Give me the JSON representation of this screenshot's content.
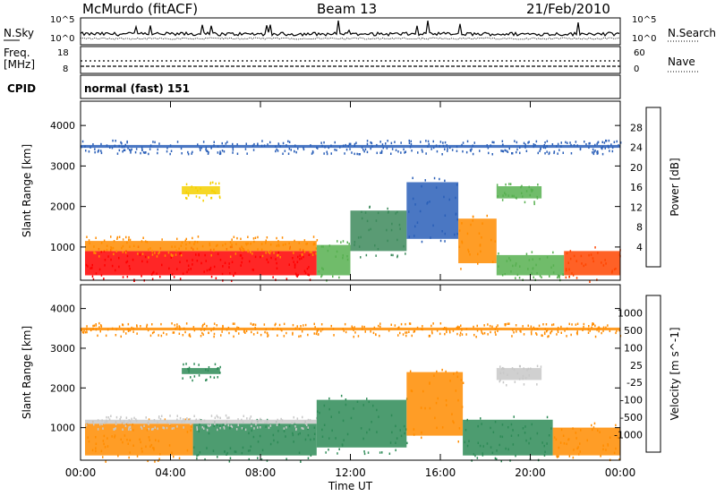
{
  "header": {
    "station": "McMurdo (fitACF)",
    "beam": "Beam 13",
    "date": "21/Feb/2010"
  },
  "noise_panel": {
    "left_label": "N.Sky",
    "right_label": "N.Search",
    "left_ticks": [
      "10^5",
      "10^0"
    ],
    "right_ticks": [
      "10^5",
      "10^0"
    ]
  },
  "freq_panel": {
    "left_label_top": "Freq.",
    "left_label_bottom": "[MHz]",
    "right_label": "Nave",
    "left_ticks": [
      "18",
      "8"
    ],
    "right_ticks": [
      "60",
      "0"
    ]
  },
  "cpid": {
    "label": "CPID",
    "value": "normal (fast) 151"
  },
  "chart_data": [
    {
      "type": "heatmap",
      "name": "power",
      "ylabel": "Slant Range [km]",
      "xlabel": "",
      "x_ticks": [
        "00:00",
        "04:00",
        "08:00",
        "12:00",
        "16:00",
        "20:00",
        "00:00"
      ],
      "y_ticks": [
        "1000",
        "2000",
        "3000",
        "4000"
      ],
      "xlim_hours": [
        0,
        24
      ],
      "ylim_km": [
        180,
        4600
      ],
      "colorbar": {
        "label": "Power [dB]",
        "tick_labels": [
          "4",
          "8",
          "12",
          "16",
          "20",
          "24",
          "28"
        ],
        "colors": [
          "#0000ff",
          "#2a5fb8",
          "#3d8a5c",
          "#57b050",
          "#f5d000",
          "#ff8c00",
          "#ff4500",
          "#ff0000"
        ]
      },
      "bands": [
        {
          "t0": 0.2,
          "t1": 10.5,
          "r0": 300,
          "r1": 900,
          "color": "#ff0000"
        },
        {
          "t0": 0.2,
          "t1": 10.5,
          "r0": 900,
          "r1": 1150,
          "color": "#ff8c00"
        },
        {
          "t0": 10.5,
          "t1": 12.0,
          "r0": 300,
          "r1": 1050,
          "color": "#57b050"
        },
        {
          "t0": 12.0,
          "t1": 14.5,
          "r0": 900,
          "r1": 1900,
          "color": "#3d8a5c"
        },
        {
          "t0": 14.5,
          "t1": 16.8,
          "r0": 1200,
          "r1": 2600,
          "color": "#2a5fb8"
        },
        {
          "t0": 16.8,
          "t1": 18.5,
          "r0": 600,
          "r1": 1700,
          "color": "#ff8c00"
        },
        {
          "t0": 18.5,
          "t1": 21.5,
          "r0": 300,
          "r1": 800,
          "color": "#57b050"
        },
        {
          "t0": 21.5,
          "t1": 24.0,
          "r0": 300,
          "r1": 900,
          "color": "#ff4500"
        },
        {
          "t0": 18.5,
          "t1": 20.5,
          "r0": 2200,
          "r1": 2500,
          "color": "#57b050"
        },
        {
          "t0": 4.5,
          "t1": 6.2,
          "r0": 2300,
          "r1": 2500,
          "color": "#f5d000"
        },
        {
          "t0": 0.0,
          "t1": 24.0,
          "r0": 3450,
          "r1": 3520,
          "color": "#2a5fb8"
        }
      ]
    },
    {
      "type": "heatmap",
      "name": "velocity",
      "ylabel": "Slant Range [km]",
      "xlabel": "Time UT",
      "x_ticks": [
        "00:00",
        "04:00",
        "08:00",
        "12:00",
        "16:00",
        "20:00",
        "00:00"
      ],
      "y_ticks": [
        "1000",
        "2000",
        "3000",
        "4000"
      ],
      "xlim_hours": [
        0,
        24
      ],
      "ylim_km": [
        180,
        4600
      ],
      "colorbar": {
        "label": "Velocity [m s^-1]",
        "tick_labels": [
          "1000",
          "500",
          "100",
          "25",
          "-25",
          "-100",
          "-500",
          "-1000"
        ],
        "colors": [
          "#1e3cc8",
          "#3a7a8c",
          "#2e8b57",
          "#66c844",
          "#c8c8c8",
          "#ffd27a",
          "#ff8c00",
          "#ff4a1a",
          "#ff0000"
        ]
      },
      "bands": [
        {
          "t0": 0.2,
          "t1": 5.0,
          "r0": 300,
          "r1": 1100,
          "color": "#ff8c00"
        },
        {
          "t0": 5.0,
          "t1": 10.5,
          "r0": 300,
          "r1": 1100,
          "color": "#2e8b57"
        },
        {
          "t0": 0.2,
          "t1": 10.5,
          "r0": 1100,
          "r1": 1200,
          "color": "#c8c8c8"
        },
        {
          "t0": 10.5,
          "t1": 14.5,
          "r0": 500,
          "r1": 1700,
          "color": "#2e8b57"
        },
        {
          "t0": 14.5,
          "t1": 17.0,
          "r0": 800,
          "r1": 2400,
          "color": "#ff8c00"
        },
        {
          "t0": 17.0,
          "t1": 21.0,
          "r0": 300,
          "r1": 1200,
          "color": "#2e8b57"
        },
        {
          "t0": 21.0,
          "t1": 24.0,
          "r0": 300,
          "r1": 1000,
          "color": "#ff8c00"
        },
        {
          "t0": 18.5,
          "t1": 20.5,
          "r0": 2200,
          "r1": 2500,
          "color": "#c8c8c8"
        },
        {
          "t0": 4.5,
          "t1": 6.2,
          "r0": 2350,
          "r1": 2500,
          "color": "#2e8b57"
        },
        {
          "t0": 0.0,
          "t1": 24.0,
          "r0": 3450,
          "r1": 3520,
          "color": "#ff8c00"
        }
      ]
    }
  ]
}
